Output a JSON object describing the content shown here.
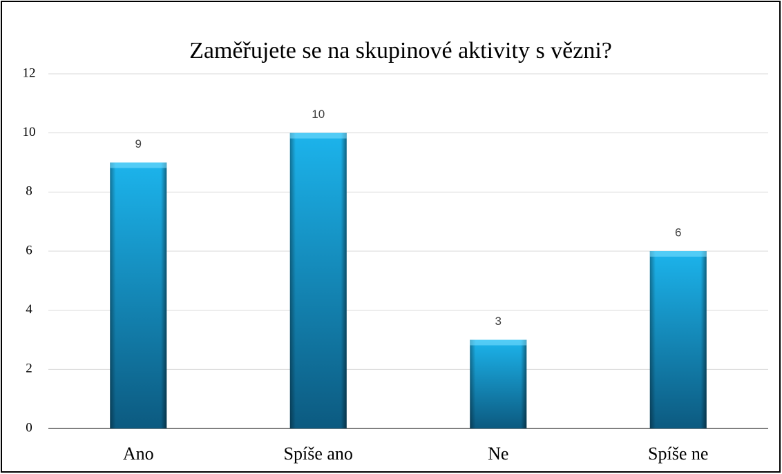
{
  "chart_data": {
    "type": "bar",
    "title": "Zaměřujete se na skupinové aktivity s vězni?",
    "categories": [
      "Ano",
      "Spíše ano",
      "Ne",
      "Spíše ne"
    ],
    "values": [
      9,
      10,
      3,
      6
    ],
    "color": "#1cb4ec",
    "ylim": [
      0,
      12
    ],
    "yticks": [
      0,
      2,
      4,
      6,
      8,
      10,
      12
    ],
    "grid": true
  }
}
